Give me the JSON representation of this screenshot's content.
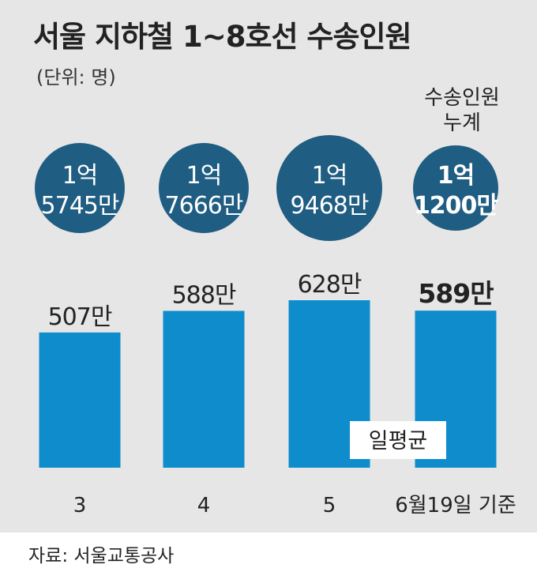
{
  "title": "서울 지하철 1~8호선 수송인원",
  "unit_note": "(단위: 명)",
  "circle_header": [
    "수송인원",
    "누계"
  ],
  "chart_data": {
    "type": "bar",
    "title": "서울 지하철 1~8호선 수송인원",
    "ylabel": "",
    "categories": [
      "3",
      "4",
      "5",
      "6월19일 기준"
    ],
    "series": [
      {
        "name": "일평균",
        "values": [
          5070000,
          5880000,
          6280000,
          5890000
        ]
      }
    ],
    "bar_labels": [
      "507만",
      "588만",
      "628만",
      "589만"
    ],
    "cumulative": [
      157450000,
      176660000,
      194680000,
      112000000
    ],
    "cumulative_labels": [
      [
        "1억",
        "5745만"
      ],
      [
        "1억",
        "7666만"
      ],
      [
        "1억",
        "9468만"
      ],
      [
        "1억",
        "1200만"
      ]
    ],
    "legend": "일평균",
    "ylim": [
      0,
      6280000
    ]
  },
  "source": "자료: 서울교통공사",
  "colors": {
    "bar": "#0e8ccc",
    "circle": "#1f5d82",
    "panel": "#e6e6e6",
    "text": "#222222"
  }
}
